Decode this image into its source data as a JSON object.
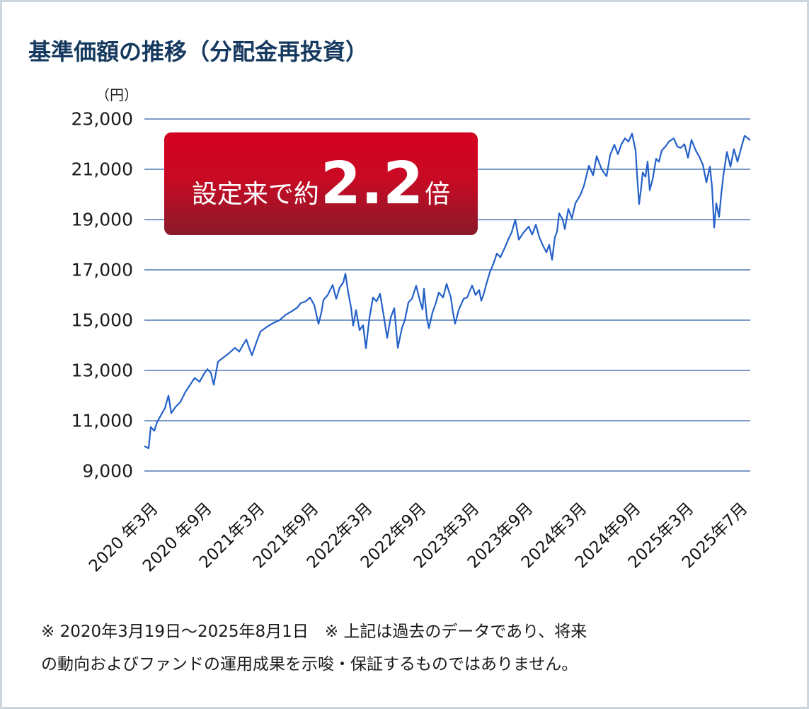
{
  "title": "基準価額の推移（分配金再投資）",
  "unit_label": "（円）",
  "badge": {
    "prefix": "設定来で約",
    "value": "2.2",
    "suffix": "倍"
  },
  "notes": [
    "※ 2020年3月19日～2025年8月1日　※ 上記は過去のデータであり、将来",
    "の動向およびファンドの運用成果を示唆・保証するものではありません。"
  ],
  "colors": {
    "title": "#163a5f",
    "line": "#2461c8",
    "grid": "#2c5ea8",
    "badge_top": "#d4001f",
    "badge_bottom": "#8a1a2a",
    "border": "#cdd6df"
  },
  "chart_data": {
    "type": "line",
    "title": "基準価額の推移（分配金再投資）",
    "xlabel": "",
    "ylabel": "（円）",
    "ylim": [
      9000,
      23000
    ],
    "yticks": [
      23000,
      21000,
      19000,
      17000,
      15000,
      13000,
      11000,
      9000
    ],
    "ytick_labels": [
      "23,000",
      "21,000",
      "19,000",
      "17,000",
      "15,000",
      "13,000",
      "11,000",
      "9,000"
    ],
    "xtick_labels": [
      "2020 年3月",
      "2020 年9月",
      "2021年3月",
      "2021年9月",
      "2022年3月",
      "2022年9月",
      "2023年3月",
      "2023年9月",
      "2024年3月",
      "2024年9月",
      "2025年3月",
      "2025年7月"
    ],
    "grid": true,
    "legend": "none",
    "period": "2020年3月19日～2025年8月1日",
    "annotation": "設定来で約2.2倍",
    "series": [
      {
        "name": "基準価額（分配金再投資）",
        "points": [
          [
            204,
            9985
          ],
          [
            207,
            9950
          ],
          [
            210,
            9900
          ],
          [
            213,
            10750
          ],
          [
            218,
            10600
          ],
          [
            222,
            10950
          ],
          [
            228,
            11250
          ],
          [
            233,
            11500
          ],
          [
            238,
            12000
          ],
          [
            242,
            11300
          ],
          [
            248,
            11550
          ],
          [
            255,
            11750
          ],
          [
            262,
            12150
          ],
          [
            268,
            12400
          ],
          [
            275,
            12700
          ],
          [
            282,
            12550
          ],
          [
            288,
            12850
          ],
          [
            293,
            13050
          ],
          [
            298,
            12900
          ],
          [
            302,
            12430
          ],
          [
            308,
            13350
          ],
          [
            315,
            13500
          ],
          [
            322,
            13650
          ],
          [
            332,
            13900
          ],
          [
            338,
            13750
          ],
          [
            343,
            14000
          ],
          [
            348,
            14230
          ],
          [
            352,
            13900
          ],
          [
            356,
            13600
          ],
          [
            362,
            14100
          ],
          [
            368,
            14550
          ],
          [
            378,
            14750
          ],
          [
            387,
            14900
          ],
          [
            395,
            15000
          ],
          [
            403,
            15200
          ],
          [
            412,
            15350
          ],
          [
            420,
            15500
          ],
          [
            425,
            15680
          ],
          [
            432,
            15750
          ],
          [
            438,
            15900
          ],
          [
            444,
            15600
          ],
          [
            450,
            14850
          ],
          [
            454,
            15300
          ],
          [
            457,
            15800
          ],
          [
            463,
            16000
          ],
          [
            470,
            16400
          ],
          [
            475,
            15850
          ],
          [
            480,
            16300
          ],
          [
            485,
            16500
          ],
          [
            488,
            16850
          ],
          [
            492,
            16100
          ],
          [
            496,
            15500
          ],
          [
            499,
            14780
          ],
          [
            503,
            15400
          ],
          [
            508,
            14600
          ],
          [
            513,
            14800
          ],
          [
            517,
            13880
          ],
          [
            522,
            15100
          ],
          [
            527,
            15900
          ],
          [
            532,
            15750
          ],
          [
            537,
            16050
          ],
          [
            542,
            15200
          ],
          [
            547,
            14300
          ],
          [
            552,
            15100
          ],
          [
            557,
            15480
          ],
          [
            562,
            13900
          ],
          [
            568,
            14700
          ],
          [
            572,
            15000
          ],
          [
            577,
            15700
          ],
          [
            582,
            15850
          ],
          [
            588,
            16370
          ],
          [
            593,
            15800
          ],
          [
            597,
            15420
          ],
          [
            599,
            16250
          ],
          [
            603,
            15100
          ],
          [
            606,
            14680
          ],
          [
            611,
            15300
          ],
          [
            616,
            15700
          ],
          [
            620,
            16100
          ],
          [
            626,
            15900
          ],
          [
            631,
            16440
          ],
          [
            637,
            15900
          ],
          [
            640,
            15300
          ],
          [
            643,
            14860
          ],
          [
            648,
            15400
          ],
          [
            655,
            15850
          ],
          [
            660,
            15900
          ],
          [
            667,
            16380
          ],
          [
            672,
            16000
          ],
          [
            677,
            16200
          ],
          [
            680,
            15770
          ],
          [
            684,
            16100
          ],
          [
            687,
            16420
          ],
          [
            692,
            16900
          ],
          [
            697,
            17230
          ],
          [
            702,
            17650
          ],
          [
            707,
            17500
          ],
          [
            713,
            17870
          ],
          [
            718,
            18200
          ],
          [
            723,
            18500
          ],
          [
            728,
            19000
          ],
          [
            733,
            18200
          ],
          [
            740,
            18500
          ],
          [
            747,
            18720
          ],
          [
            752,
            18400
          ],
          [
            757,
            18800
          ],
          [
            762,
            18300
          ],
          [
            767,
            17970
          ],
          [
            772,
            17700
          ],
          [
            776,
            18000
          ],
          [
            780,
            17400
          ],
          [
            784,
            18300
          ],
          [
            787,
            18520
          ],
          [
            790,
            19250
          ],
          [
            795,
            19000
          ],
          [
            798,
            18620
          ],
          [
            803,
            19420
          ],
          [
            808,
            19050
          ],
          [
            813,
            19650
          ],
          [
            820,
            19980
          ],
          [
            825,
            20340
          ],
          [
            832,
            21140
          ],
          [
            838,
            20760
          ],
          [
            843,
            21520
          ],
          [
            850,
            21000
          ],
          [
            857,
            20720
          ],
          [
            862,
            21560
          ],
          [
            868,
            21980
          ],
          [
            873,
            21600
          ],
          [
            878,
            22000
          ],
          [
            883,
            22230
          ],
          [
            888,
            22100
          ],
          [
            893,
            22420
          ],
          [
            898,
            21750
          ],
          [
            900,
            20800
          ],
          [
            903,
            19620
          ],
          [
            906,
            20300
          ],
          [
            908,
            20870
          ],
          [
            912,
            20700
          ],
          [
            915,
            21310
          ],
          [
            918,
            20170
          ],
          [
            922,
            20600
          ],
          [
            927,
            21420
          ],
          [
            931,
            21300
          ],
          [
            935,
            21750
          ],
          [
            940,
            21900
          ],
          [
            945,
            22100
          ],
          [
            952,
            22230
          ],
          [
            957,
            21900
          ],
          [
            962,
            21850
          ],
          [
            967,
            22000
          ],
          [
            972,
            21460
          ],
          [
            977,
            22170
          ],
          [
            983,
            21750
          ],
          [
            988,
            21500
          ],
          [
            993,
            21190
          ],
          [
            998,
            20480
          ],
          [
            1003,
            21100
          ],
          [
            1006,
            20300
          ],
          [
            1009,
            18680
          ],
          [
            1012,
            19650
          ],
          [
            1016,
            19100
          ],
          [
            1019,
            20000
          ],
          [
            1022,
            20760
          ],
          [
            1027,
            21690
          ],
          [
            1032,
            21100
          ],
          [
            1037,
            21800
          ],
          [
            1042,
            21300
          ],
          [
            1047,
            21830
          ],
          [
            1052,
            22330
          ],
          [
            1056,
            22250
          ],
          [
            1060,
            22150
          ]
        ]
      }
    ]
  }
}
